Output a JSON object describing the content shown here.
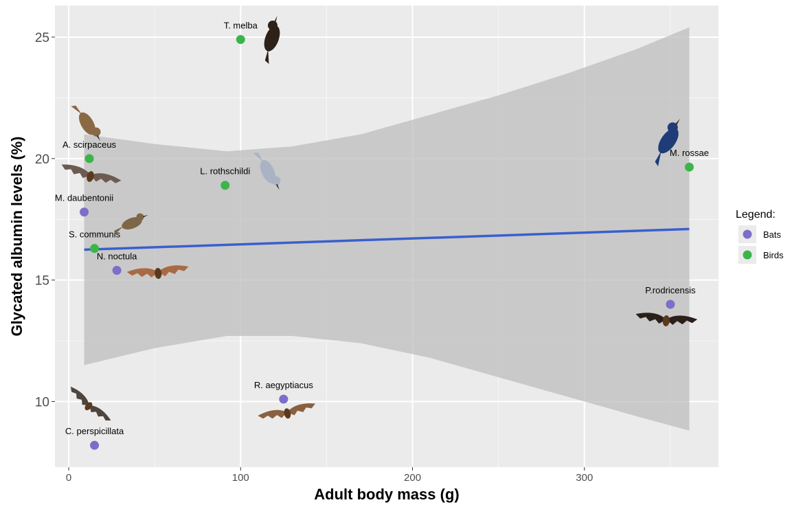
{
  "chart_data": {
    "type": "scatter",
    "xlabel": "Adult body mass (g)",
    "ylabel": "Glycated albumin levels (%)",
    "xlim": [
      -8,
      378
    ],
    "ylim": [
      7.3,
      26.3
    ],
    "x_ticks": [
      0,
      100,
      200,
      300
    ],
    "x_tick_labels": [
      "0",
      "100",
      "200",
      "300"
    ],
    "y_ticks": [
      10,
      15,
      20,
      25
    ],
    "y_tick_labels": [
      "10",
      "15",
      "20",
      "25"
    ],
    "grid": true,
    "legend": {
      "title": "Legend:",
      "position": "right",
      "entries": [
        {
          "name": "Bats",
          "color": "#7b6fc9"
        },
        {
          "name": "Birds",
          "color": "#3cb44b"
        }
      ]
    },
    "series": [
      {
        "name": "Bats",
        "color": "#7b6fc9",
        "points": [
          {
            "label": "M. daubentonii",
            "x": 9,
            "y": 17.8
          },
          {
            "label": "N. noctula",
            "x": 28,
            "y": 15.4
          },
          {
            "label": "C. perspicillata",
            "x": 15,
            "y": 8.2
          },
          {
            "label": "R. aegyptiacus",
            "x": 125,
            "y": 10.1
          },
          {
            "label": "P.rodricensis",
            "x": 350,
            "y": 14.0
          }
        ]
      },
      {
        "name": "Birds",
        "color": "#3cb44b",
        "points": [
          {
            "label": "T. melba",
            "x": 100,
            "y": 24.9
          },
          {
            "label": "A. scirpaceus",
            "x": 12,
            "y": 20.0
          },
          {
            "label": "L. rothschildi",
            "x": 91,
            "y": 18.9
          },
          {
            "label": "S. communis",
            "x": 15,
            "y": 16.3
          },
          {
            "label": "M. rossae",
            "x": 361,
            "y": 19.65
          }
        ]
      }
    ],
    "regression": {
      "color": "#3a5fcd",
      "x": [
        9,
        361
      ],
      "y": [
        16.25,
        17.1
      ]
    },
    "confidence_band": {
      "color": "#bdbdbd",
      "x": [
        9,
        50,
        92,
        130,
        170,
        210,
        250,
        290,
        330,
        361
      ],
      "upper": [
        21.0,
        20.6,
        20.3,
        20.5,
        21.0,
        21.8,
        22.6,
        23.5,
        24.5,
        25.4
      ],
      "lower": [
        11.5,
        12.2,
        12.7,
        12.7,
        12.4,
        11.8,
        11.0,
        10.2,
        9.4,
        8.8
      ]
    }
  }
}
